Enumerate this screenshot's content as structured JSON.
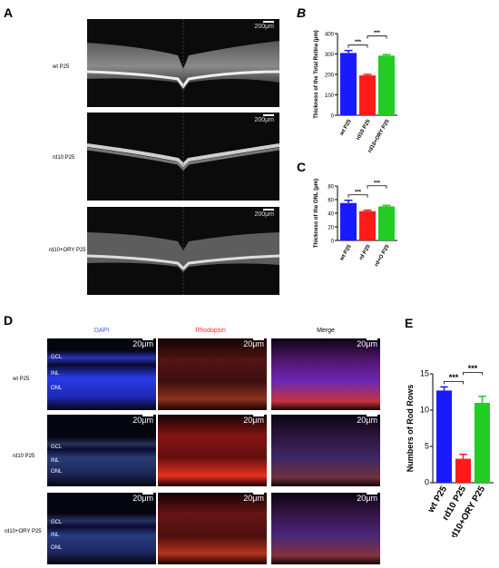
{
  "panels": {
    "A": "A",
    "B": "B",
    "C": "C",
    "D": "D",
    "E": "E"
  },
  "oct": {
    "scale_bar": "200μm",
    "rows": [
      "wt P25",
      "rd10 P25",
      "rd10+ORY P25"
    ]
  },
  "micro": {
    "columns": [
      "DAPI",
      "Rhodopsin",
      "Merge"
    ],
    "rows": [
      "wt P25",
      "rd10 P25",
      "rd10+ORY P25"
    ],
    "scale_bar": "20μm",
    "layers": [
      "GCL",
      "INL",
      "ONL"
    ],
    "colors": {
      "dapi": "#3a55ff",
      "rhodopsin": "#ff2a2a"
    }
  },
  "chart_data": [
    {
      "id": "B",
      "type": "bar",
      "ylabel": "Thickness of the Total Retina (μm)",
      "categories": [
        "wt P25",
        "rd10 P25",
        "rd10+ORY P25"
      ],
      "values": [
        305,
        195,
        292
      ],
      "errors": [
        12,
        5,
        5
      ],
      "colors": [
        "#1a1aff",
        "#ff1a1a",
        "#22cc22"
      ],
      "ylim": [
        0,
        400
      ],
      "yticks": [
        "0",
        "100",
        "200",
        "300",
        "400"
      ],
      "significance": [
        "***",
        "***"
      ]
    },
    {
      "id": "C",
      "type": "bar",
      "ylabel": "Thickness of the ONL (μm)",
      "categories": [
        "wt P25",
        "rd P25",
        "rd+O P25"
      ],
      "values": [
        55,
        43,
        50
      ],
      "errors": [
        4,
        1.5,
        1.5
      ],
      "colors": [
        "#1a1aff",
        "#ff1a1a",
        "#22cc22"
      ],
      "ylim": [
        0,
        80
      ],
      "yticks": [
        "0",
        "20",
        "40",
        "60",
        "80"
      ],
      "significance": [
        "***",
        "***"
      ]
    },
    {
      "id": "E",
      "type": "bar",
      "ylabel": "Numbers of Rod Rows",
      "categories": [
        "wt P25",
        "rd10 P25",
        "rd10+ORY P25"
      ],
      "values": [
        12.7,
        3.3,
        11.0
      ],
      "errors": [
        0.5,
        0.6,
        0.9
      ],
      "colors": [
        "#1a1aff",
        "#ff1a1a",
        "#22cc22"
      ],
      "ylim": [
        0,
        15
      ],
      "yticks": [
        "0",
        "5",
        "10",
        "15"
      ],
      "significance": [
        "***",
        "***"
      ]
    }
  ]
}
